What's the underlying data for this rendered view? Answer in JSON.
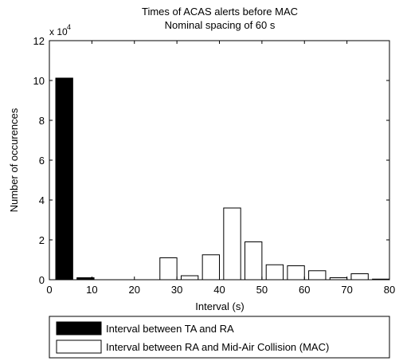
{
  "chart_data": {
    "type": "bar",
    "title": [
      "Times of ACAS alerts before MAC",
      "Nominal spacing of 60 s"
    ],
    "xlabel": "Interval (s)",
    "ylabel": "Number of occurences",
    "y_scale_label": "x 10",
    "y_scale_exponent": "4",
    "xlim": [
      0,
      80
    ],
    "ylim": [
      0,
      12
    ],
    "y_multiplier": 10000,
    "xticks": [
      "0",
      "10",
      "20",
      "30",
      "40",
      "50",
      "60",
      "70",
      "80"
    ],
    "yticks": [
      "0",
      "2",
      "4",
      "6",
      "8",
      "10",
      "12"
    ],
    "grid": false,
    "legend_position": "bottom-outside",
    "series": [
      {
        "name": "Interval between TA and RA",
        "color": "#000000",
        "bins": [
          {
            "x0": 1.5,
            "x1": 5.5,
            "value": 10.12
          },
          {
            "x0": 6.5,
            "x1": 10.5,
            "value": 0.1
          }
        ]
      },
      {
        "name": "Interval between RA and Mid-Air Collision (MAC)",
        "color": "#ffffff",
        "bins": [
          {
            "x0": 26,
            "x1": 30,
            "value": 1.1
          },
          {
            "x0": 31,
            "x1": 35,
            "value": 0.2
          },
          {
            "x0": 36,
            "x1": 40,
            "value": 1.25
          },
          {
            "x0": 41,
            "x1": 45,
            "value": 3.6
          },
          {
            "x0": 46,
            "x1": 50,
            "value": 1.9
          },
          {
            "x0": 51,
            "x1": 55,
            "value": 0.75
          },
          {
            "x0": 56,
            "x1": 60,
            "value": 0.7
          },
          {
            "x0": 61,
            "x1": 65,
            "value": 0.45
          },
          {
            "x0": 66,
            "x1": 70,
            "value": 0.1
          },
          {
            "x0": 71,
            "x1": 75,
            "value": 0.3
          },
          {
            "x0": 76,
            "x1": 80,
            "value": 0.03
          }
        ]
      }
    ]
  }
}
